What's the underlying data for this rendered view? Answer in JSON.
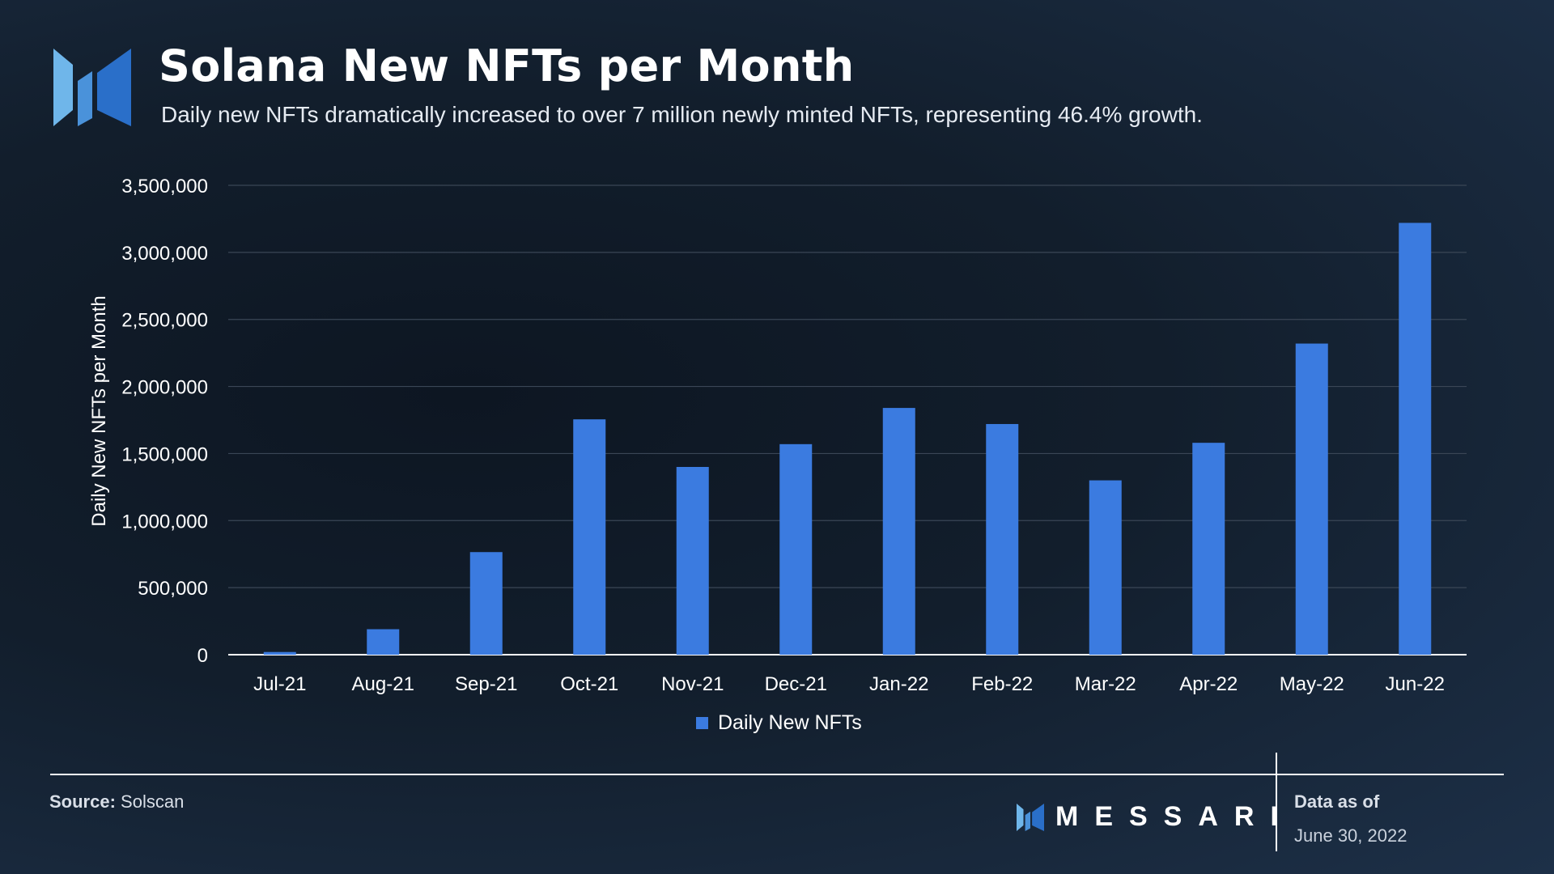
{
  "header": {
    "title": "Solana New NFTs per Month",
    "subtitle": "Daily new NFTs dramatically increased to over 7 million newly minted NFTs, representing 46.4% growth."
  },
  "colors": {
    "bar": "#3b7be0",
    "grid": "#3a4656",
    "axis": "#ffffff",
    "logo_light": "#6fb6ea",
    "logo_dark": "#2a6fc9"
  },
  "icons": {
    "logo": "messari-logo-icon",
    "brand": "messari-small-logo-icon"
  },
  "chart_data": {
    "type": "bar",
    "title": "Solana New NFTs per Month",
    "ylabel": "Daily New NFTs per Month",
    "xlabel": "",
    "categories": [
      "Jul-21",
      "Aug-21",
      "Sep-21",
      "Oct-21",
      "Nov-21",
      "Dec-21",
      "Jan-22",
      "Feb-22",
      "Mar-22",
      "Apr-22",
      "May-22",
      "Jun-22"
    ],
    "series": [
      {
        "name": "Daily New NFTs",
        "values": [
          20000,
          190000,
          765000,
          1755000,
          1400000,
          1570000,
          1840000,
          1720000,
          1300000,
          1580000,
          2320000,
          3220000
        ]
      }
    ],
    "ylim": [
      0,
      3500000
    ],
    "yticks": [
      0,
      500000,
      1000000,
      1500000,
      2000000,
      2500000,
      3000000,
      3500000
    ],
    "ytick_labels": [
      "0",
      "500,000",
      "1,000,000",
      "1,500,000",
      "2,000,000",
      "2,500,000",
      "3,000,000",
      "3,500,000"
    ],
    "grid": true,
    "legend": "bottom-center"
  },
  "legend": {
    "label": "Daily New NFTs"
  },
  "footer": {
    "source_label": "Source:",
    "source_value": " Solscan",
    "brand": "MESSARI",
    "asof_label": "Data as of",
    "asof_date": "June 30, 2022"
  }
}
